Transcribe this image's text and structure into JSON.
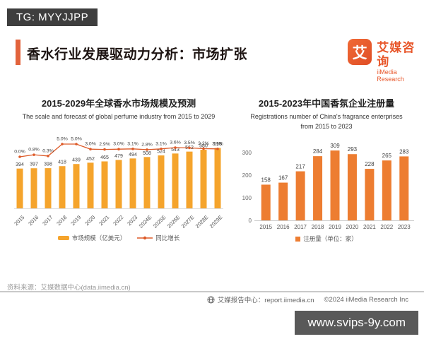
{
  "watermark_top": "TG: MYYJJPP",
  "header": {
    "title": "香水行业发展驱动力分析：市场扩张",
    "logo": {
      "glyph": "艾",
      "name_cn": "艾媒咨询",
      "name_en": "iiMedia Research"
    }
  },
  "colors": {
    "brand_orange": "#e8572b",
    "accent_bar": "#e2633c",
    "left_bar": "#f5a42c",
    "growth_line": "#dd5a28",
    "right_bar": "#ed7d31"
  },
  "chart_data": [
    {
      "type": "bar",
      "title": "2015-2029年全球香水市场规模及预测",
      "subtitle": "The scale and forecast of global perfume industry from 2015 to 2029",
      "categories": [
        "2015",
        "2016",
        "2017",
        "2018",
        "2019",
        "2020",
        "2021",
        "2022",
        "2023",
        "2024E",
        "2025E",
        "2026E",
        "2027E",
        "2028E",
        "2029E"
      ],
      "series": [
        {
          "name": "市场规模（亿美元）",
          "type": "bar",
          "values": [
            394,
            397,
            398,
            418,
            439,
            452,
            465,
            479,
            494,
            508,
            524,
            543,
            562,
            580,
            598
          ],
          "color": "#f5a42c"
        },
        {
          "name": "同比增长",
          "type": "line",
          "values": [
            0.0,
            0.8,
            0.3,
            5.0,
            5.0,
            3.0,
            2.9,
            3.0,
            3.1,
            2.8,
            3.1,
            3.6,
            3.5,
            3.2,
            3.1
          ],
          "labels": [
            "0.0%",
            "0.8%",
            "0.3%",
            "5.0%",
            "5.0%",
            "3.0%",
            "2.9%",
            "3.0%",
            "3.1%",
            "2.8%",
            "3.1%",
            "3.6%",
            "3.5%",
            "3.2%",
            "3.1%"
          ],
          "color": "#dd5a28"
        }
      ],
      "ylabel": "",
      "xlabel": "",
      "grid": false,
      "legend_position": "bottom"
    },
    {
      "type": "bar",
      "title": "2015-2023年中国香氛企业注册量",
      "subtitle_lines": [
        "Registrations number of China's fragrance enterprises",
        "from 2015 to 2023"
      ],
      "categories": [
        "2015",
        "2016",
        "2017",
        "2018",
        "2019",
        "2020",
        "2021",
        "2022",
        "2023"
      ],
      "values": [
        158,
        167,
        217,
        284,
        309,
        293,
        228,
        265,
        283
      ],
      "legend": "注册量（单位：家）",
      "yticks": [
        0,
        100,
        200,
        300
      ],
      "ylim": [
        0,
        330
      ],
      "color": "#ed7d31",
      "ylabel": "",
      "xlabel": "",
      "grid": false,
      "legend_position": "bottom"
    }
  ],
  "footer": {
    "source": "资料来源：艾媒数据中心(data.iimedia.cn)",
    "report_center": "艾媒报告中心：report.iimedia.cn",
    "copyright": "©2024  iiMedia Research  Inc",
    "watermark_bottom": "www.svips-9y.com"
  }
}
